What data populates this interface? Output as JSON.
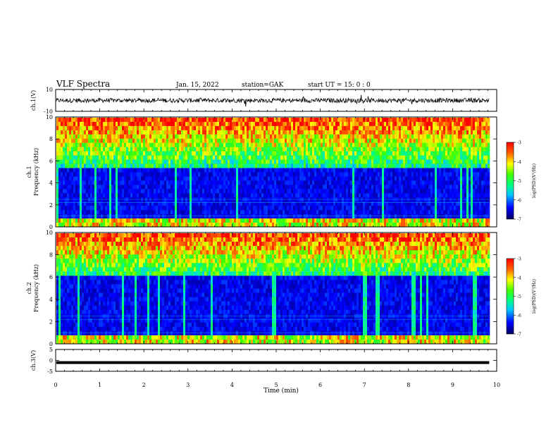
{
  "header": {
    "title": "VLF Spectra",
    "date": "Jan. 15, 2022",
    "station": "station=GAK",
    "start": "start UT =  15: 0  : 0"
  },
  "chart_data": [
    {
      "type": "line",
      "panel": "ch1-waveform",
      "ylabel": "ch.1(V)",
      "ylim": [
        -10,
        10
      ],
      "yticks": [
        "10",
        "-10"
      ],
      "trace_level": 0,
      "trace_noise": 2,
      "series_color": "#000000"
    },
    {
      "type": "heatmap",
      "panel": "ch1-spectrogram",
      "ylabel": "ch.1\nFrequency (kHz)",
      "ylim": [
        0,
        10
      ],
      "yticks": [
        "0",
        "2",
        "4",
        "6",
        "8",
        "10"
      ],
      "band_edge_khz": 5.5,
      "colorbar": {
        "label": "log(PSD)(V²/Hz)",
        "ticks": [
          "-3",
          "-4",
          "-5",
          "-6",
          "-7"
        ],
        "range": [
          -7,
          -3
        ]
      }
    },
    {
      "type": "heatmap",
      "panel": "ch2-spectrogram",
      "ylabel": "ch.2\nFrequency (kHz)",
      "ylim": [
        0,
        10
      ],
      "yticks": [
        "0",
        "2",
        "4",
        "6",
        "8",
        "10"
      ],
      "band_edge_khz": 6.0,
      "colorbar": {
        "label": "log(PSD)(V²/Hz)",
        "ticks": [
          "-3",
          "-4",
          "-5",
          "-6",
          "-7"
        ],
        "range": [
          -7,
          -3
        ]
      }
    },
    {
      "type": "line",
      "panel": "ch3-waveform",
      "ylabel": "ch.3(V)",
      "ylim": [
        -5,
        5
      ],
      "yticks": [
        "5",
        "0",
        "-5"
      ],
      "trace_level": -1,
      "series_color": "#000000"
    }
  ],
  "xaxis": {
    "label": "Time (min)",
    "range": [
      0,
      10
    ],
    "ticks": [
      "0",
      "1",
      "2",
      "3",
      "4",
      "5",
      "6",
      "7",
      "8",
      "9",
      "10"
    ],
    "data_end": 9.83
  },
  "colors": {
    "low": "#00004a",
    "mid": "#00ff66",
    "high": "#ff2000"
  }
}
